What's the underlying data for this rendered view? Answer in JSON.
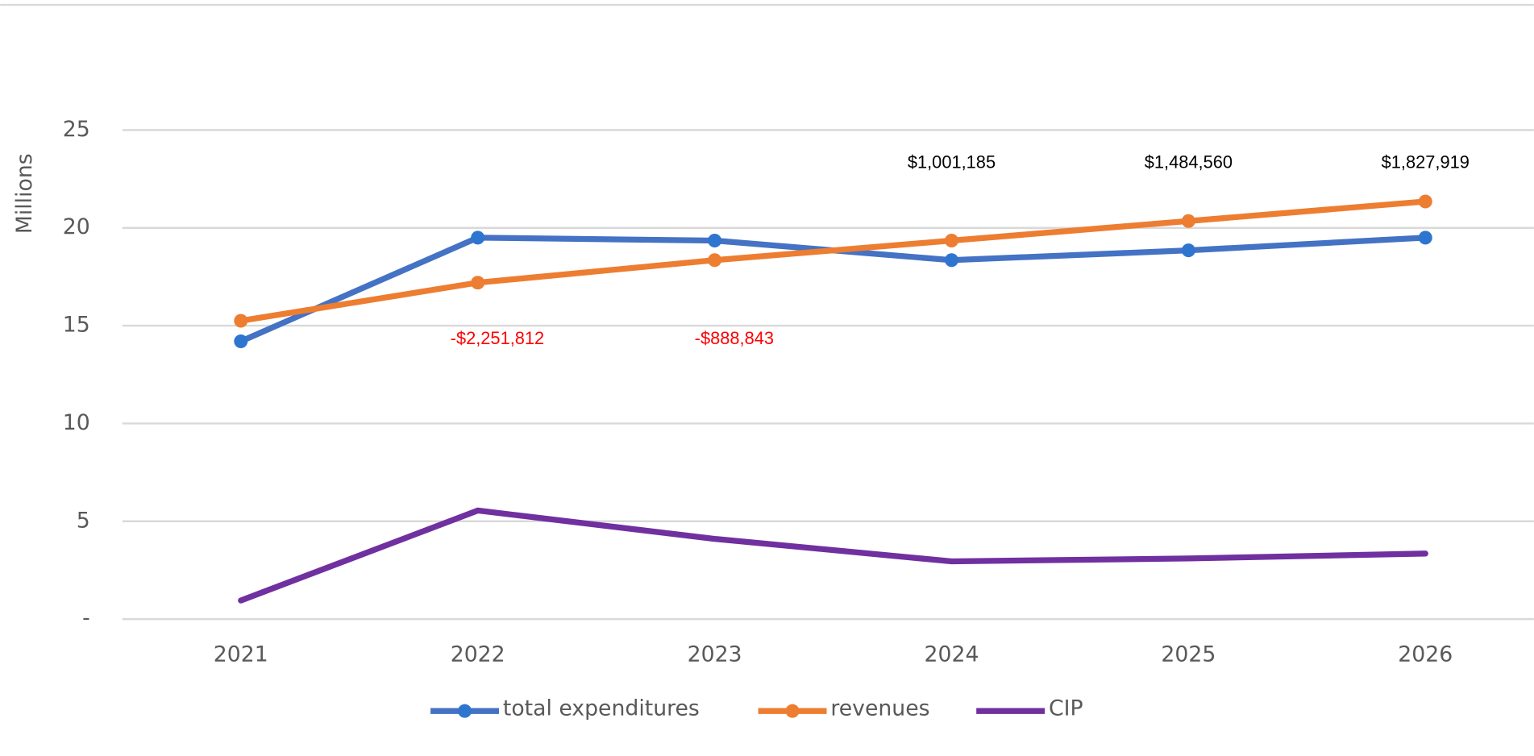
{
  "chart_data": {
    "type": "line",
    "y_label": "Millions",
    "categories": [
      "2021",
      "2022",
      "2023",
      "2024",
      "2025",
      "2026"
    ],
    "series": [
      {
        "name": "total expenditures",
        "color": "#4472c4",
        "marker_color": "#2e75d0",
        "marker": true,
        "values": [
          14.2,
          19.5,
          19.35,
          18.35,
          18.85,
          19.5
        ]
      },
      {
        "name": "revenues",
        "color": "#ed7d31",
        "marker_color": "#ed7d31",
        "marker": true,
        "values": [
          15.25,
          17.2,
          18.35,
          19.35,
          20.35,
          21.35
        ]
      },
      {
        "name": "CIP",
        "color": "#7030a0",
        "marker_color": "#7030a0",
        "marker": false,
        "values": [
          0.95,
          5.55,
          4.1,
          2.95,
          3.1,
          3.35
        ]
      }
    ],
    "annotations": {
      "values": [
        null,
        -2.251812,
        -0.888843,
        1.001185,
        1.48456,
        1.827919
      ],
      "value_labels": [
        null,
        "-$2,251,812",
        "-$888,843",
        "$1,001,185",
        "$1,484,560",
        "$1,827,919"
      ],
      "negative_color": "#ff0000",
      "positive_color": "#000000"
    },
    "ylim": [
      0,
      25
    ],
    "yticks": [
      {
        "value": 0,
        "label": "-"
      },
      5,
      10,
      15,
      20,
      25
    ],
    "grid": true,
    "legend": "bottom"
  }
}
